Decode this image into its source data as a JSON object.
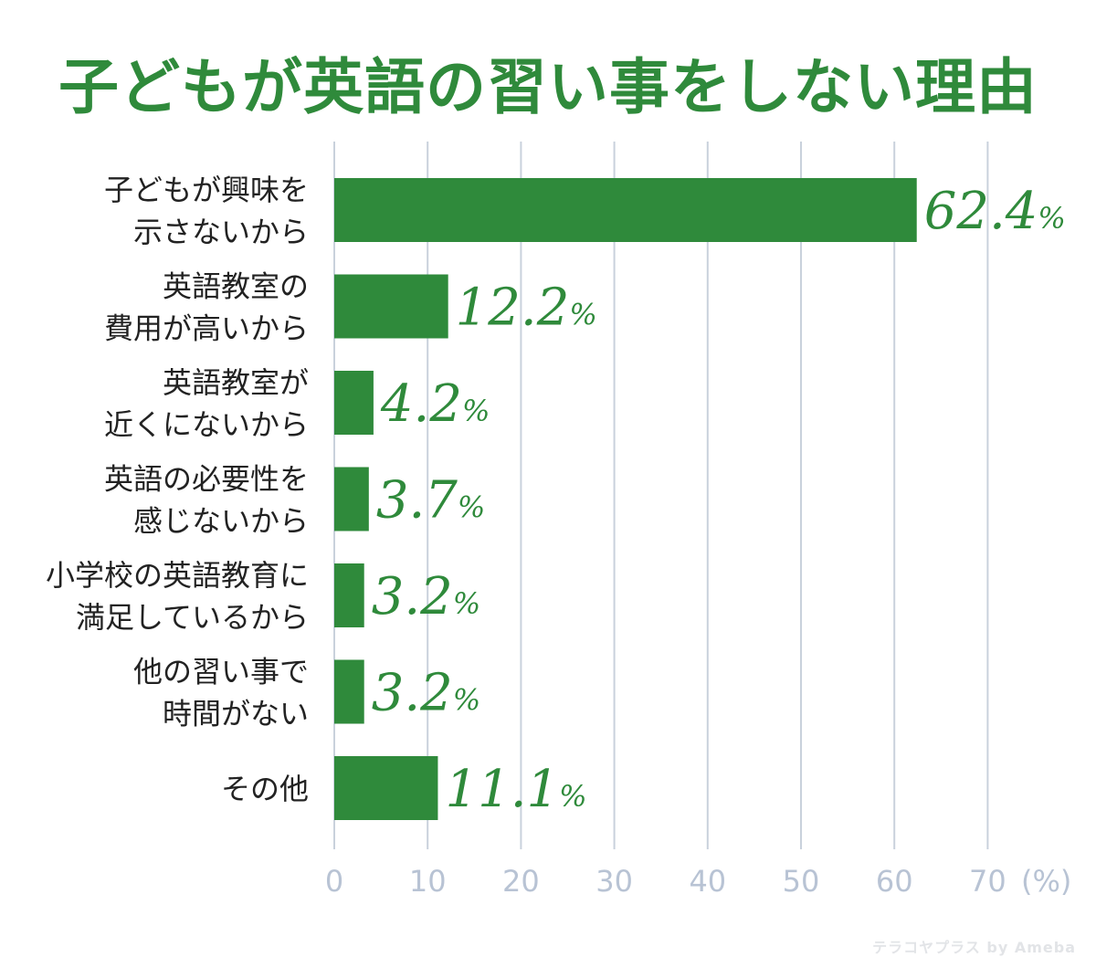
{
  "title": "子どもが英語の習い事をしない理由",
  "watermark": "テラコヤプラス by Ameba",
  "colors": {
    "bar": "#2f8a3b",
    "grid": "#c9d1dc",
    "tick": "#b8c3d4",
    "title": "#2f8a3b"
  },
  "chart_data": {
    "type": "bar",
    "orientation": "horizontal",
    "title": "子どもが英語の習い事をしない理由",
    "categories": [
      [
        "子どもが興味を",
        "示さないから"
      ],
      [
        "英語教室の",
        "費用が高いから"
      ],
      [
        "英語教室が",
        "近くにないから"
      ],
      [
        "英語の必要性を",
        "感じないから"
      ],
      [
        "小学校の英語教育に",
        "満足しているから"
      ],
      [
        "他の習い事で",
        "時間がない"
      ],
      [
        "その他"
      ]
    ],
    "values": [
      62.4,
      12.2,
      4.2,
      3.7,
      3.2,
      3.2,
      11.1
    ],
    "value_suffix": "%",
    "x_ticks": [
      "0",
      "10",
      "20",
      "30",
      "40",
      "50",
      "60",
      "70"
    ],
    "x_unit": "(%)",
    "xlim": [
      0,
      70
    ],
    "grid": true
  }
}
